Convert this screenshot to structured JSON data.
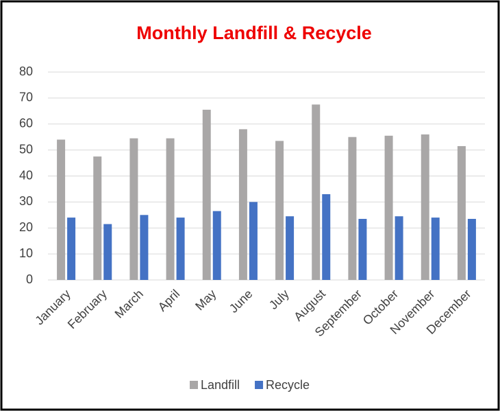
{
  "chart_data": {
    "type": "bar",
    "title": "Monthly Landfill & Recycle",
    "categories": [
      "January",
      "February",
      "March",
      "April",
      "May",
      "June",
      "July",
      "August",
      "September",
      "October",
      "November",
      "December"
    ],
    "series": [
      {
        "name": "Landfill",
        "color": "#a9a7a7",
        "values": [
          54,
          47.5,
          54.5,
          54.5,
          65.5,
          58,
          53.5,
          67.5,
          55,
          55.5,
          56,
          51.5
        ]
      },
      {
        "name": "Recycle",
        "color": "#4472c4",
        "values": [
          24,
          21.5,
          25,
          24,
          26.5,
          30,
          24.5,
          33,
          23.5,
          24.5,
          24,
          23.5
        ]
      }
    ],
    "ylim": [
      0,
      80
    ],
    "yticks": [
      0,
      10,
      20,
      30,
      40,
      50,
      60,
      70,
      80
    ],
    "grid": true,
    "legend": "bottom"
  }
}
